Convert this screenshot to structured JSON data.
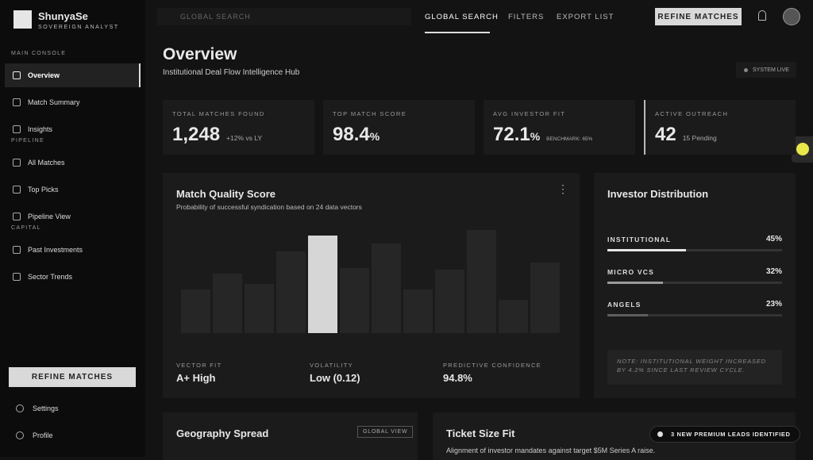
{
  "brand": {
    "name": "ShunyaSe",
    "tagline": "SOVEREIGN ANALYST"
  },
  "topbar": {
    "search_placeholder": "GLOBAL SEARCH",
    "tabs": [
      "GLOBAL SEARCH",
      "FILTERS",
      "EXPORT LIST"
    ],
    "button": "REFINE MATCHES"
  },
  "sidebar": {
    "sections": [
      {
        "title": "MAIN CONSOLE",
        "items": [
          "Overview",
          "Match Summary",
          "Insights"
        ]
      },
      {
        "title": "PIPELINE",
        "items": [
          "All Matches",
          "Top Picks",
          "Pipeline View"
        ]
      },
      {
        "title": "CAPITAL",
        "items": [
          "Past Investments",
          "Sector Trends"
        ]
      }
    ],
    "button": "REFINE MATCHES",
    "footer": [
      "Settings",
      "Profile"
    ]
  },
  "header": {
    "title": "Overview",
    "subtitle": "Institutional Deal Flow Intelligence Hub",
    "status": "SYSTEM LIVE"
  },
  "kpis": [
    {
      "label": "TOTAL MATCHES FOUND",
      "value": "1,248",
      "note": "+12% vs LY"
    },
    {
      "label": "TOP MATCH SCORE",
      "value": "98.4",
      "unit": "%"
    },
    {
      "label": "AVG INVESTOR FIT",
      "value": "72.1",
      "unit": "%",
      "note": "BENCHMARK: 65%"
    },
    {
      "label": "ACTIVE OUTREACH",
      "value": "42",
      "note": "15 Pending"
    }
  ],
  "match_quality": {
    "title": "Match Quality Score",
    "subtitle": "Probability of successful syndication based on 24 data vectors",
    "chart": {
      "type": "bar",
      "values": [
        55,
        75,
        62,
        103,
        123,
        82,
        113,
        55,
        80,
        130,
        42,
        89
      ],
      "highlight": 4,
      "color": "#262626",
      "highlight_color": "#d6d6d6"
    },
    "stats": [
      {
        "label": "VECTOR FIT",
        "value": "A+ High"
      },
      {
        "label": "VOLATILITY",
        "value": "Low (0.12)"
      },
      {
        "label": "PREDICTIVE CONFIDENCE",
        "value": "94.8%"
      }
    ]
  },
  "distribution": {
    "title": "Investor Distribution",
    "items": [
      {
        "name": "INSTITUTIONAL",
        "value": 45,
        "value_label": "45%",
        "color": "#e6e6e6"
      },
      {
        "name": "MICRO VCS",
        "value": 32,
        "value_label": "32%",
        "color": "#9a9a9a"
      },
      {
        "name": "ANGELS",
        "value": 23,
        "value_label": "23%",
        "color": "#5e5e5e"
      }
    ],
    "note": "NOTE: INSTITUTIONAL WEIGHT INCREASED BY 4.2% SINCE LAST REVIEW CYCLE."
  },
  "geography": {
    "title": "Geography Spread",
    "button": "GLOBAL VIEW"
  },
  "ticket": {
    "title": "Ticket Size Fit",
    "subtitle": "Alignment of investor mandates against target $5M Series A raise."
  },
  "toast": "3 NEW PREMIUM LEADS IDENTIFIED"
}
